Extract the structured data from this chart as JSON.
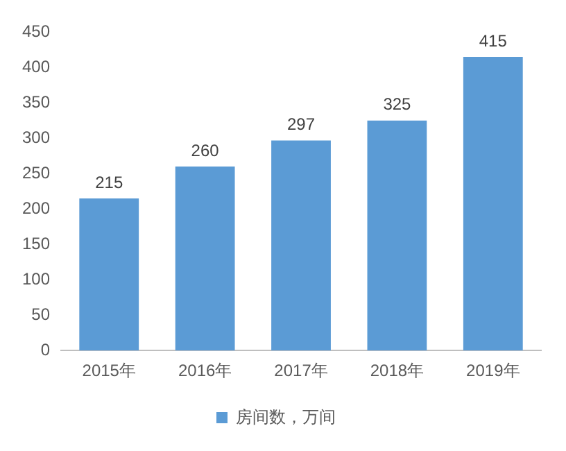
{
  "chart_data": {
    "type": "bar",
    "categories": [
      "2015年",
      "2016年",
      "2017年",
      "2018年",
      "2019年"
    ],
    "series": [
      {
        "name": "房间数，万间",
        "color": "#5b9bd5",
        "values": [
          215,
          260,
          297,
          325,
          415
        ]
      }
    ],
    "ylim": [
      0,
      450
    ],
    "yticks": [
      0,
      50,
      100,
      150,
      200,
      250,
      300,
      350,
      400,
      450
    ],
    "grid": false,
    "legend": "bottom",
    "data_labels": true
  }
}
